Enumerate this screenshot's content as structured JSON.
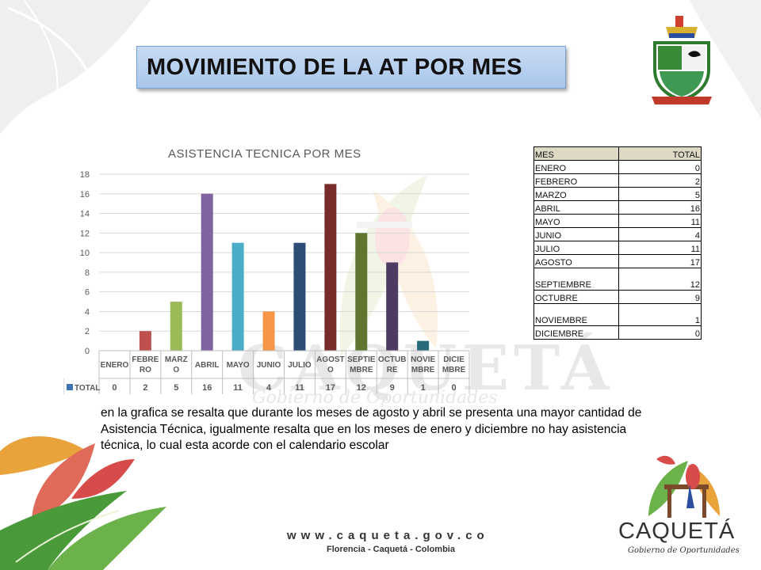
{
  "slide": {
    "title": "MOVIMIENTO DE LA AT POR MES",
    "body": "en la grafica  se resalta que durante los meses de agosto y abril se presenta una mayor cantidad de Asistencia Técnica, igualmente resalta que en los meses de enero y diciembre no hay asistencia técnica, lo cual esta acorde con el  calendario escolar"
  },
  "colors": {
    "title_bg": "#b7cfef",
    "bars": [
      "#3b75b5",
      "#c0504d",
      "#9bbb59",
      "#8064a2",
      "#4bacc6",
      "#f79646",
      "#2c4d75",
      "#772c2a",
      "#5f7530",
      "#4d3b62",
      "#276a7c",
      "#b65708"
    ]
  },
  "chart_data": {
    "type": "bar",
    "title": "ASISTENCIA TECNICA  POR MES",
    "categories": [
      "ENERO",
      "FEBRE RO",
      "MARZ O",
      "ABRIL",
      "MAYO",
      "JUNIO",
      "JULIO",
      "AGOST O",
      "SEPTIE MBRE",
      "OCTUB RE",
      "NOVIE MBRE",
      "DICIE MBRE"
    ],
    "series": [
      {
        "name": "TOTAL",
        "values": [
          0,
          2,
          5,
          16,
          11,
          4,
          11,
          17,
          12,
          9,
          1,
          0
        ]
      }
    ],
    "yticks": [
      "0",
      "2",
      "4",
      "6",
      "8",
      "10",
      "12",
      "14",
      "16",
      "18"
    ],
    "ylim": [
      0,
      18
    ],
    "grid": true,
    "legend": "table-left"
  },
  "table": {
    "headers": [
      "MES",
      "TOTAL"
    ],
    "rows": [
      [
        "ENERO",
        "0"
      ],
      [
        "FEBRERO",
        "2"
      ],
      [
        "MARZO",
        "5"
      ],
      [
        "ABRIL",
        "16"
      ],
      [
        "MAYO",
        "11"
      ],
      [
        "JUNIO",
        "4"
      ],
      [
        "JULIO",
        "11"
      ],
      [
        "AGOSTO",
        "17"
      ],
      [
        "SEPTIEMBRE",
        "12"
      ],
      [
        "OCTUBRE",
        "9"
      ],
      [
        "NOVIEMBRE",
        "1"
      ],
      [
        "DICIEMBRE",
        "0"
      ]
    ]
  },
  "footer": {
    "url": "www.caqueta.gov.co",
    "city": "Florencia - Caquetá - Colombia"
  },
  "logo": {
    "name": "CAQUETÁ",
    "tagline": "Gobierno de Oportunidades",
    "watermark_name": "CAQUETÁ",
    "watermark_tagline": "Gobierno de Oportunidades"
  }
}
